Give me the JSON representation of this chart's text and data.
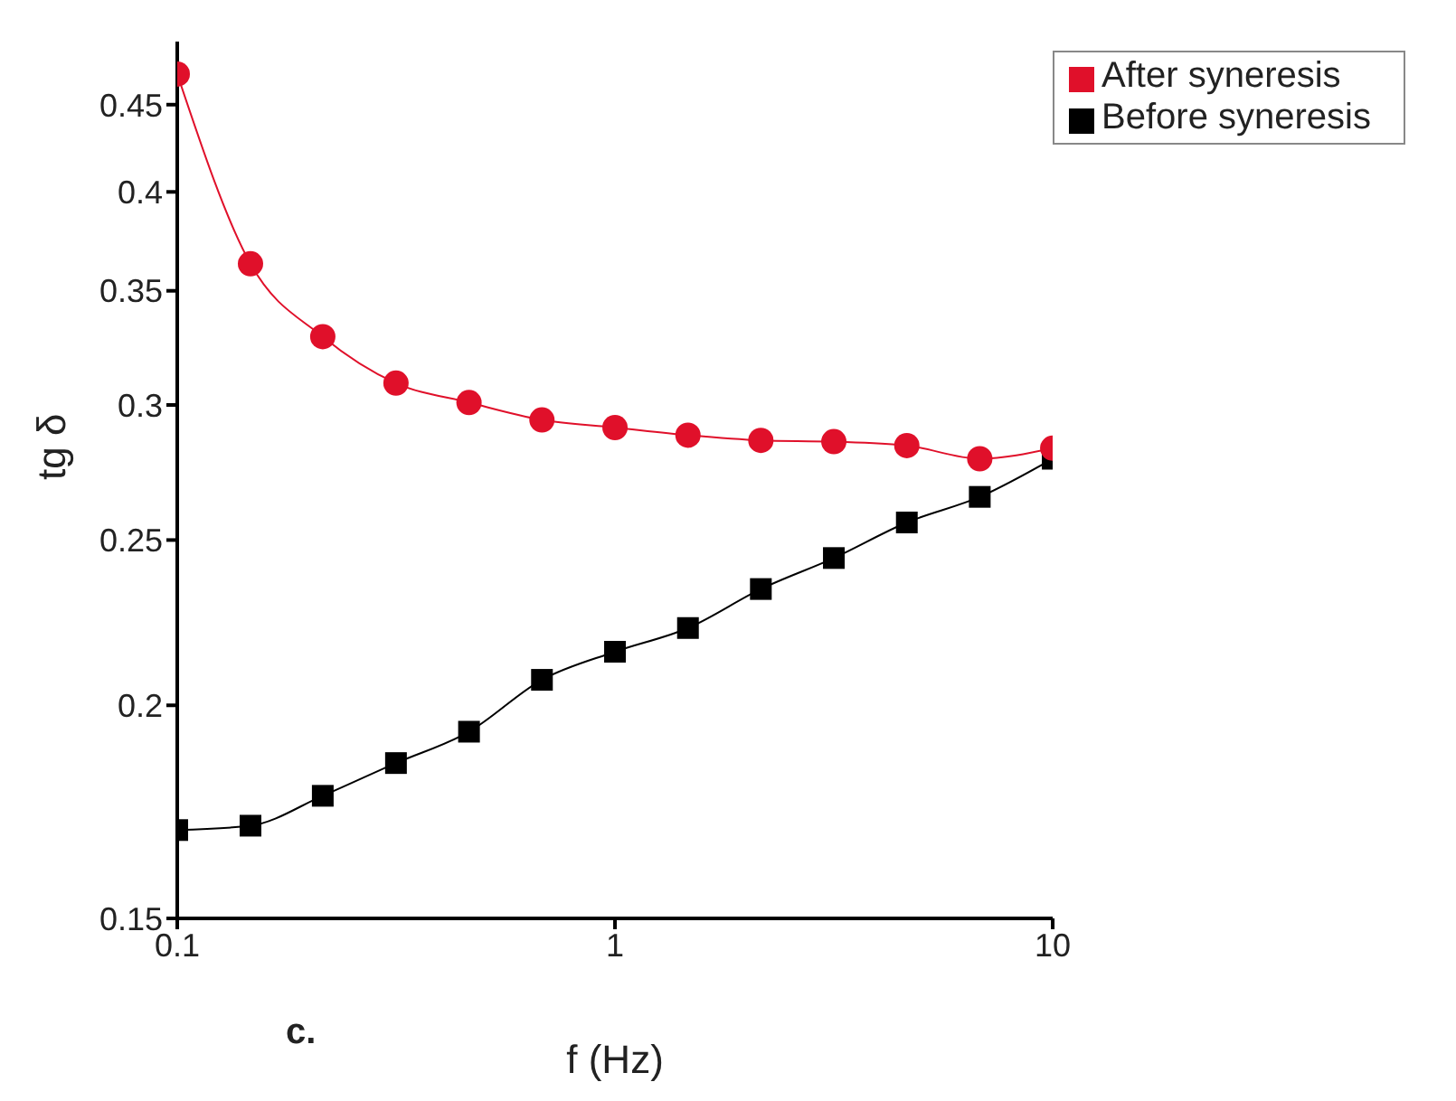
{
  "chart_data": {
    "type": "line",
    "xlabel": "f (Hz)",
    "ylabel": "tg δ",
    "annotations": [
      "c."
    ],
    "x": [
      0.1,
      0.147,
      0.215,
      0.316,
      0.464,
      0.681,
      1,
      1.468,
      2.154,
      3.162,
      4.642,
      6.813,
      10
    ],
    "series": [
      {
        "name": "Before syneresis",
        "color": "#000000",
        "marker": "square",
        "values": [
          0.169,
          0.17,
          0.177,
          0.185,
          0.193,
          0.207,
          0.215,
          0.222,
          0.234,
          0.244,
          0.256,
          0.265,
          0.279
        ]
      },
      {
        "name": "After syneresis",
        "color": "#e0102a",
        "marker": "circle",
        "values": [
          0.469,
          0.363,
          0.329,
          0.309,
          0.301,
          0.294,
          0.291,
          0.288,
          0.286,
          0.2855,
          0.284,
          0.279,
          0.283
        ]
      }
    ],
    "log": "xy",
    "xlim": [
      0.1,
      10
    ],
    "xticks": [
      0.1,
      1,
      10
    ],
    "ylim": [
      0.15,
      0.49
    ],
    "yticks": [
      0.15,
      0.2,
      0.25,
      0.3,
      0.35,
      0.4,
      0.45
    ],
    "grid": false,
    "legend": "top right"
  }
}
